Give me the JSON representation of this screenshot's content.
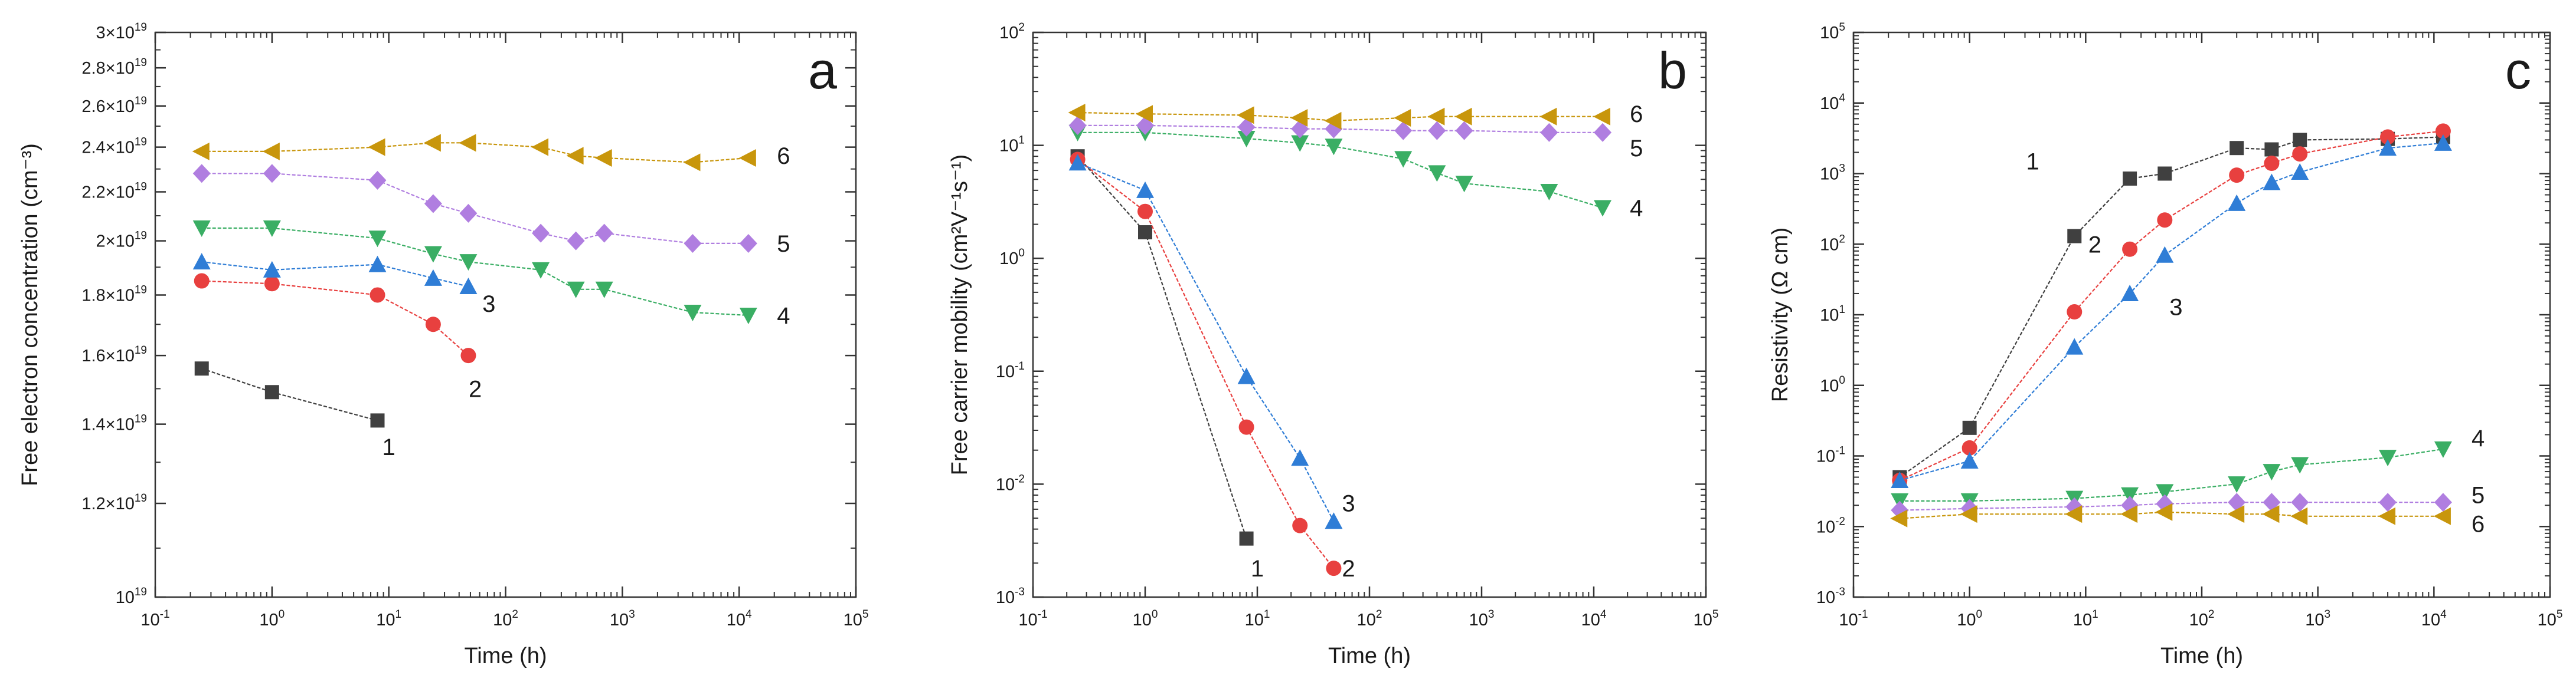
{
  "figure": {
    "series_colors": {
      "1": "#404040",
      "2": "#e8403f",
      "3": "#2f7dd6",
      "4": "#3aae64",
      "5": "#b07ee0",
      "6": "#c8960c"
    },
    "marker_shapes": {
      "1": "square",
      "2": "circle",
      "3": "triangle-up",
      "4": "triangle-down",
      "5": "diamond",
      "6": "triangle-left"
    }
  },
  "chart_data": [
    {
      "id": "a",
      "type": "line",
      "panel_letter": "a",
      "xlabel": "Time (h)",
      "ylabel": "Free electron concentration (cm⁻³)",
      "xscale": "log",
      "yscale": "log",
      "xlim": [
        0.1,
        100000
      ],
      "ylim": [
        1e+19,
        3e+19
      ],
      "x_ticks": [
        {
          "value": 0.1,
          "base": "10",
          "exp": "-1"
        },
        {
          "value": 1,
          "base": "10",
          "exp": "0"
        },
        {
          "value": 10,
          "base": "10",
          "exp": "1"
        },
        {
          "value": 100,
          "base": "10",
          "exp": "2"
        },
        {
          "value": 1000,
          "base": "10",
          "exp": "3"
        },
        {
          "value": 10000,
          "base": "10",
          "exp": "4"
        },
        {
          "value": 100000,
          "base": "10",
          "exp": "5"
        }
      ],
      "y_ticks": [
        {
          "value": 1e+19,
          "mant": "",
          "base": "10",
          "exp": "19"
        },
        {
          "value": 1.2e+19,
          "mant": "1.2×",
          "base": "10",
          "exp": "19"
        },
        {
          "value": 1.4e+19,
          "mant": "1.4×",
          "base": "10",
          "exp": "19"
        },
        {
          "value": 1.6e+19,
          "mant": "1.6×",
          "base": "10",
          "exp": "19"
        },
        {
          "value": 1.8e+19,
          "mant": "1.8×",
          "base": "10",
          "exp": "19"
        },
        {
          "value": 2e+19,
          "mant": "2×",
          "base": "10",
          "exp": "19"
        },
        {
          "value": 2.2e+19,
          "mant": "2.2×",
          "base": "10",
          "exp": "19"
        },
        {
          "value": 2.4e+19,
          "mant": "2.4×",
          "base": "10",
          "exp": "19"
        },
        {
          "value": 2.6e+19,
          "mant": "2.6×",
          "base": "10",
          "exp": "19"
        },
        {
          "value": 2.8e+19,
          "mant": "2.8×",
          "base": "10",
          "exp": "19"
        },
        {
          "value": 3e+19,
          "mant": "3×",
          "base": "10",
          "exp": "19"
        }
      ],
      "series": [
        {
          "name": "1",
          "x": [
            0.25,
            1,
            8
          ],
          "y": [
            1.56e+19,
            1.49e+19,
            1.41e+19
          ],
          "label_at": [
            10,
            1.34e+19
          ]
        },
        {
          "name": "2",
          "x": [
            0.25,
            1,
            8,
            24,
            48
          ],
          "y": [
            1.85e+19,
            1.84e+19,
            1.8e+19,
            1.7e+19,
            1.6e+19
          ],
          "label_at": [
            55,
            1.5e+19
          ]
        },
        {
          "name": "3",
          "x": [
            0.25,
            1,
            8,
            24,
            48
          ],
          "y": [
            1.92e+19,
            1.89e+19,
            1.91e+19,
            1.86e+19,
            1.83e+19
          ],
          "label_at": [
            72,
            1.77e+19
          ]
        },
        {
          "name": "4",
          "x": [
            0.25,
            1,
            8,
            24,
            48,
            200,
            400,
            700,
            4000,
            12000
          ],
          "y": [
            2.05e+19,
            2.05e+19,
            2.01e+19,
            1.95e+19,
            1.92e+19,
            1.89e+19,
            1.82e+19,
            1.82e+19,
            1.74e+19,
            1.73e+19
          ],
          "label_at": [
            24000,
            1.73e+19
          ]
        },
        {
          "name": "5",
          "x": [
            0.25,
            1,
            8,
            24,
            48,
            200,
            400,
            700,
            4000,
            12000
          ],
          "y": [
            2.28e+19,
            2.28e+19,
            2.25e+19,
            2.15e+19,
            2.11e+19,
            2.03e+19,
            2e+19,
            2.03e+19,
            1.99e+19,
            1.99e+19
          ],
          "label_at": [
            24000,
            1.99e+19
          ]
        },
        {
          "name": "6",
          "x": [
            0.25,
            1,
            8,
            24,
            48,
            200,
            400,
            700,
            4000,
            12000
          ],
          "y": [
            2.38e+19,
            2.38e+19,
            2.4e+19,
            2.42e+19,
            2.42e+19,
            2.4e+19,
            2.36e+19,
            2.35e+19,
            2.33e+19,
            2.35e+19
          ],
          "label_at": [
            24000,
            2.36e+19
          ]
        }
      ]
    },
    {
      "id": "b",
      "type": "line",
      "panel_letter": "b",
      "xlabel": "Time (h)",
      "ylabel": "Free carrier mobility (cm²V⁻¹s⁻¹)",
      "xscale": "log",
      "yscale": "log",
      "xlim": [
        0.1,
        100000
      ],
      "ylim": [
        0.001,
        100
      ],
      "x_ticks": [
        {
          "value": 0.1,
          "base": "10",
          "exp": "-1"
        },
        {
          "value": 1,
          "base": "10",
          "exp": "0"
        },
        {
          "value": 10,
          "base": "10",
          "exp": "1"
        },
        {
          "value": 100,
          "base": "10",
          "exp": "2"
        },
        {
          "value": 1000,
          "base": "10",
          "exp": "3"
        },
        {
          "value": 10000,
          "base": "10",
          "exp": "4"
        },
        {
          "value": 100000,
          "base": "10",
          "exp": "5"
        }
      ],
      "y_ticks": [
        {
          "value": 0.001,
          "mant": "",
          "base": "10",
          "exp": "-3"
        },
        {
          "value": 0.01,
          "mant": "",
          "base": "10",
          "exp": "-2"
        },
        {
          "value": 0.1,
          "mant": "",
          "base": "10",
          "exp": "-1"
        },
        {
          "value": 1,
          "mant": "",
          "base": "10",
          "exp": "0"
        },
        {
          "value": 10,
          "mant": "",
          "base": "10",
          "exp": "1"
        },
        {
          "value": 100,
          "mant": "",
          "base": "10",
          "exp": "2"
        }
      ],
      "series": [
        {
          "name": "1",
          "x": [
            0.25,
            1,
            8
          ],
          "y": [
            8,
            1.7,
            0.0033
          ],
          "label_at": [
            10,
            0.0018
          ]
        },
        {
          "name": "2",
          "x": [
            0.25,
            1,
            8,
            24,
            48
          ],
          "y": [
            7.5,
            2.6,
            0.032,
            0.0043,
            0.0018
          ],
          "label_at": [
            65,
            0.0018
          ]
        },
        {
          "name": "3",
          "x": [
            0.25,
            1,
            8,
            24,
            48
          ],
          "y": [
            7,
            4,
            0.09,
            0.017,
            0.0047
          ],
          "label_at": [
            65,
            0.0068
          ]
        },
        {
          "name": "4",
          "x": [
            0.25,
            1,
            8,
            24,
            48,
            200,
            400,
            700,
            4000,
            12000
          ],
          "y": [
            13,
            13,
            11.5,
            10.5,
            9.8,
            7.6,
            5.7,
            4.6,
            3.9,
            2.8
          ],
          "label_at": [
            24000,
            2.8
          ]
        },
        {
          "name": "5",
          "x": [
            0.25,
            1,
            8,
            24,
            48,
            200,
            400,
            700,
            4000,
            12000
          ],
          "y": [
            15,
            15,
            14.5,
            14,
            14,
            13.5,
            13.5,
            13.5,
            13,
            13
          ],
          "label_at": [
            24000,
            9.5
          ]
        },
        {
          "name": "6",
          "x": [
            0.25,
            1,
            8,
            24,
            48,
            200,
            400,
            700,
            4000,
            12000
          ],
          "y": [
            19.5,
            19,
            18.5,
            17.5,
            16.5,
            17.5,
            18,
            18,
            18,
            18
          ],
          "label_at": [
            24000,
            19
          ]
        }
      ]
    },
    {
      "id": "c",
      "type": "line",
      "panel_letter": "c",
      "xlabel": "Time (h)",
      "ylabel": "Resistivity (Ω cm)",
      "xscale": "log",
      "yscale": "log",
      "xlim": [
        0.1,
        100000
      ],
      "ylim": [
        0.001,
        100000
      ],
      "x_ticks": [
        {
          "value": 0.1,
          "base": "10",
          "exp": "-1"
        },
        {
          "value": 1,
          "base": "10",
          "exp": "0"
        },
        {
          "value": 10,
          "base": "10",
          "exp": "1"
        },
        {
          "value": 100,
          "base": "10",
          "exp": "2"
        },
        {
          "value": 1000,
          "base": "10",
          "exp": "3"
        },
        {
          "value": 10000,
          "base": "10",
          "exp": "4"
        },
        {
          "value": 100000,
          "base": "10",
          "exp": "5"
        }
      ],
      "y_ticks": [
        {
          "value": 0.001,
          "mant": "",
          "base": "10",
          "exp": "-3"
        },
        {
          "value": 0.01,
          "mant": "",
          "base": "10",
          "exp": "-2"
        },
        {
          "value": 0.1,
          "mant": "",
          "base": "10",
          "exp": "-1"
        },
        {
          "value": 1,
          "mant": "",
          "base": "10",
          "exp": "0"
        },
        {
          "value": 10,
          "mant": "",
          "base": "10",
          "exp": "1"
        },
        {
          "value": 100,
          "mant": "",
          "base": "10",
          "exp": "2"
        },
        {
          "value": 1000,
          "mant": "",
          "base": "10",
          "exp": "3"
        },
        {
          "value": 10000,
          "mant": "",
          "base": "10",
          "exp": "4"
        },
        {
          "value": 100000,
          "mant": "",
          "base": "10",
          "exp": "5"
        }
      ],
      "series": [
        {
          "name": "1",
          "x": [
            0.25,
            1,
            8,
            24,
            48,
            200,
            400,
            700,
            4000,
            12000
          ],
          "y": [
            0.05,
            0.25,
            130,
            850,
            1000,
            2300,
            2200,
            3000,
            3100,
            3300
          ],
          "label_at": [
            3.5,
            1500
          ]
        },
        {
          "name": "2",
          "x": [
            0.25,
            1,
            8,
            24,
            48,
            200,
            400,
            700,
            4000,
            12000
          ],
          "y": [
            0.045,
            0.13,
            11,
            85,
            220,
            950,
            1400,
            1900,
            3300,
            4000
          ],
          "label_at": [
            12,
            100
          ]
        },
        {
          "name": "3",
          "x": [
            0.25,
            1,
            8,
            24,
            48,
            200,
            400,
            700,
            4000,
            12000
          ],
          "y": [
            0.045,
            0.085,
            3.5,
            20,
            70,
            380,
            750,
            1050,
            2300,
            2700
          ],
          "label_at": [
            60,
            13
          ]
        },
        {
          "name": "4",
          "x": [
            0.25,
            1,
            8,
            24,
            48,
            200,
            400,
            700,
            4000,
            12000
          ],
          "y": [
            0.023,
            0.023,
            0.025,
            0.028,
            0.031,
            0.04,
            0.06,
            0.075,
            0.095,
            0.125
          ],
          "label_at": [
            24000,
            0.18
          ]
        },
        {
          "name": "5",
          "x": [
            0.25,
            1,
            8,
            24,
            48,
            200,
            400,
            700,
            4000,
            12000
          ],
          "y": [
            0.017,
            0.018,
            0.019,
            0.02,
            0.021,
            0.022,
            0.022,
            0.022,
            0.022,
            0.022
          ],
          "label_at": [
            24000,
            0.028
          ]
        },
        {
          "name": "6",
          "x": [
            0.25,
            1,
            8,
            24,
            48,
            200,
            400,
            700,
            4000,
            12000
          ],
          "y": [
            0.013,
            0.015,
            0.015,
            0.015,
            0.016,
            0.015,
            0.015,
            0.014,
            0.014,
            0.014
          ],
          "label_at": [
            24000,
            0.011
          ]
        }
      ]
    }
  ]
}
